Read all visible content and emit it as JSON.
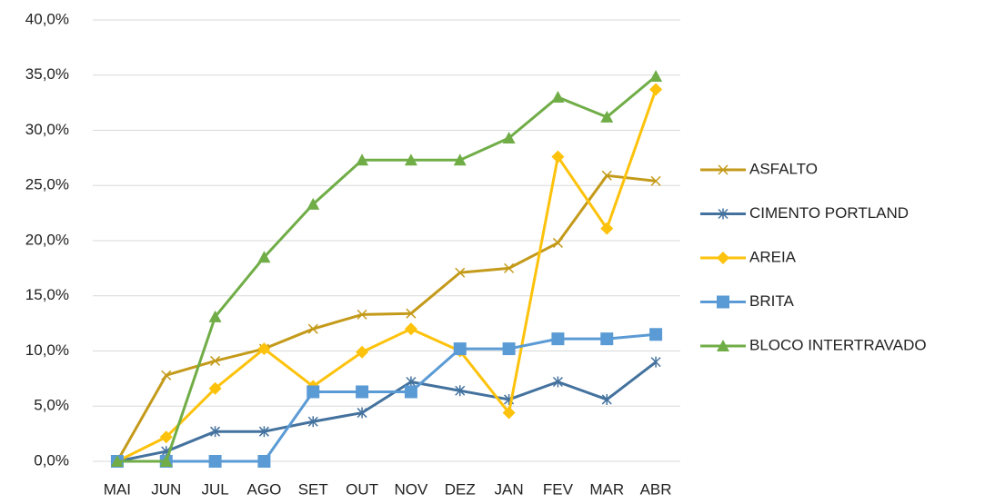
{
  "chart_data": {
    "type": "line",
    "categories": [
      "MAI",
      "JUN",
      "JUL",
      "AGO",
      "SET",
      "OUT",
      "NOV",
      "DEZ",
      "JAN",
      "FEV",
      "MAR",
      "ABR"
    ],
    "series": [
      {
        "name": "ASFALTO",
        "color": "#c49a1a",
        "marker": "x",
        "values": [
          0,
          7.8,
          9.1,
          10.2,
          12.0,
          13.3,
          13.4,
          17.1,
          17.5,
          19.8,
          25.9,
          25.4
        ]
      },
      {
        "name": "CIMENTO PORTLAND",
        "color": "#44729e",
        "marker": "star",
        "values": [
          0,
          0.9,
          2.7,
          2.7,
          3.6,
          4.4,
          7.2,
          6.4,
          5.6,
          7.2,
          5.6,
          9.0
        ]
      },
      {
        "name": "AREIA",
        "color": "#fdc20b",
        "marker": "diamond",
        "values": [
          0,
          2.2,
          6.6,
          10.2,
          6.8,
          9.9,
          12.0,
          10.0,
          4.4,
          27.6,
          21.1,
          33.7
        ]
      },
      {
        "name": "BRITA",
        "color": "#5b9bd5",
        "marker": "square",
        "values": [
          0,
          0,
          0,
          0,
          6.3,
          6.3,
          6.3,
          10.2,
          10.2,
          11.1,
          11.1,
          11.5
        ]
      },
      {
        "name": "BLOCO INTERTRAVADO",
        "color": "#70ad47",
        "marker": "triangle",
        "values": [
          0,
          0,
          13.1,
          18.5,
          23.3,
          27.3,
          27.3,
          27.3,
          29.3,
          33.0,
          31.2,
          34.9
        ]
      }
    ],
    "ylim": [
      0,
      40
    ],
    "yticks": [
      {
        "value": 0,
        "label": "0,0%"
      },
      {
        "value": 5,
        "label": "5,0%"
      },
      {
        "value": 10,
        "label": "10,0%"
      },
      {
        "value": 15,
        "label": "15,0%"
      },
      {
        "value": 20,
        "label": "20,0%"
      },
      {
        "value": 25,
        "label": "25,0%"
      },
      {
        "value": 30,
        "label": "30,0%"
      },
      {
        "value": 35,
        "label": "35,0%"
      },
      {
        "value": 40,
        "label": "40,0%"
      }
    ],
    "grid": true,
    "legend": "right"
  }
}
